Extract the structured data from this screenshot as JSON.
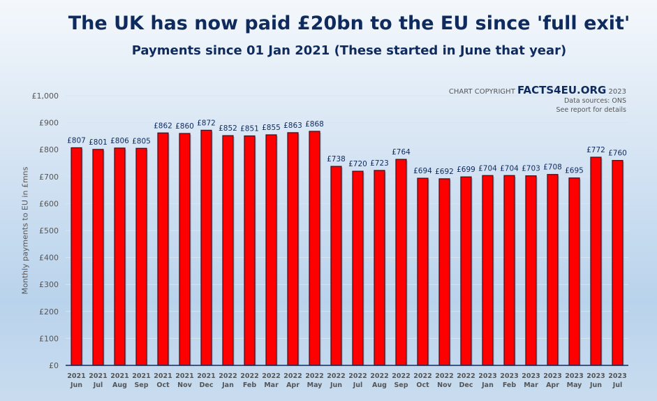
{
  "chart_data": {
    "type": "bar",
    "title": "The UK has now paid £20bn to the EU since 'full exit'",
    "subtitle": "Payments since 01 Jan 2021 (These started in June that year)",
    "ylabel": "Monthly payments to EU in £mns",
    "xlabel": "",
    "ylim": [
      0,
      1000
    ],
    "yticks": [
      "£0",
      "£100",
      "£200",
      "£300",
      "£400",
      "£500",
      "£600",
      "£700",
      "£800",
      "£900",
      "£1,000"
    ],
    "categories": [
      [
        "2021",
        "Jun"
      ],
      [
        "2021",
        "Jul"
      ],
      [
        "2021",
        "Aug"
      ],
      [
        "2021",
        "Sep"
      ],
      [
        "2021",
        "Oct"
      ],
      [
        "2021",
        "Nov"
      ],
      [
        "2021",
        "Dec"
      ],
      [
        "2022",
        "Jan"
      ],
      [
        "2022",
        "Feb"
      ],
      [
        "2022",
        "Mar"
      ],
      [
        "2022",
        "Apr"
      ],
      [
        "2022",
        "May"
      ],
      [
        "2022",
        "Jun"
      ],
      [
        "2022",
        "Jul"
      ],
      [
        "2022",
        "Aug"
      ],
      [
        "2022",
        "Sep"
      ],
      [
        "2022",
        "Oct"
      ],
      [
        "2022",
        "Nov"
      ],
      [
        "2022",
        "Dec"
      ],
      [
        "2023",
        "Jan"
      ],
      [
        "2023",
        "Feb"
      ],
      [
        "2023",
        "Mar"
      ],
      [
        "2023",
        "Apr"
      ],
      [
        "2023",
        "May"
      ],
      [
        "2023",
        "Jun"
      ],
      [
        "2023",
        "Jul"
      ]
    ],
    "values": [
      807,
      801,
      806,
      805,
      862,
      860,
      872,
      852,
      851,
      855,
      863,
      868,
      738,
      720,
      723,
      764,
      694,
      692,
      699,
      704,
      704,
      703,
      708,
      695,
      772,
      760
    ],
    "data_label_prefix": "£",
    "bar_color": "#ff0000",
    "grid": true
  },
  "copyright": {
    "prefix": "CHART COPYRIGHT",
    "brand": "FACTS4EU.ORG",
    "year": "2023",
    "sources": "Data sources: ONS",
    "note": "See report for details"
  }
}
